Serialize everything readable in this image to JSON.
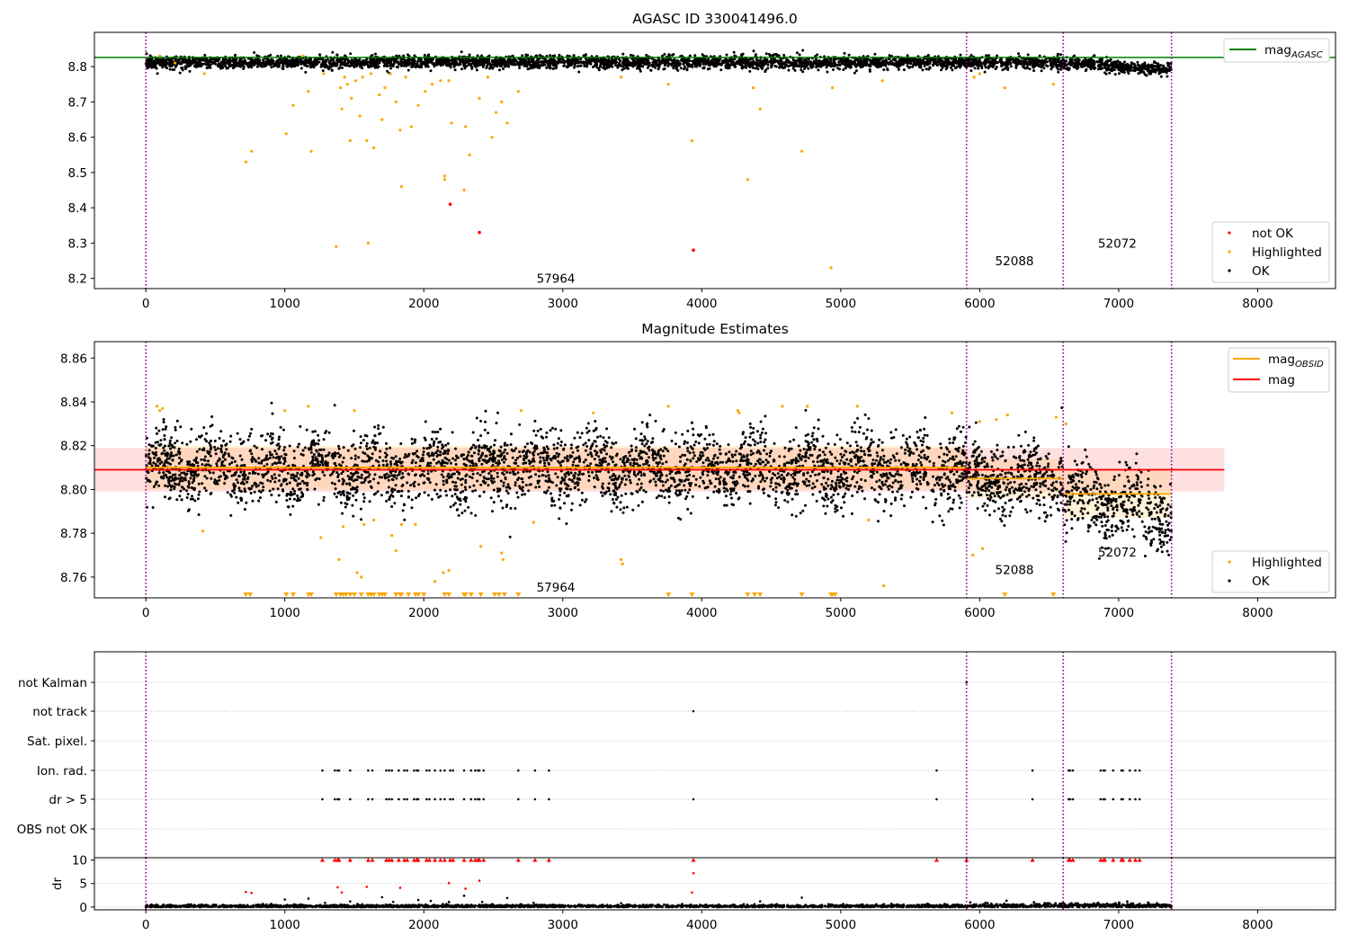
{
  "chart_data": [
    {
      "type": "scatter",
      "title": "AGASC ID 330041496.0",
      "xlim": [
        -370,
        8560
      ],
      "ylim": [
        8.171,
        8.897
      ],
      "xticks": [
        0,
        1000,
        2000,
        3000,
        4000,
        5000,
        6000,
        7000,
        8000
      ],
      "yticks": [
        8.2,
        8.3,
        8.4,
        8.5,
        8.6,
        8.7,
        8.8
      ],
      "vlines": [
        0,
        5905,
        6600,
        7380
      ],
      "hline": {
        "name": "mag_AGASC",
        "y": 8.826,
        "color": "#008000"
      },
      "obsid_labels": [
        {
          "text": "57964",
          "x": 2950,
          "y": 8.2
        },
        {
          "text": "52088",
          "x": 6250,
          "y": 8.25
        },
        {
          "text": "52072",
          "x": 6990,
          "y": 8.3
        }
      ],
      "legend_top": {
        "position": "top-right",
        "entries": [
          {
            "label": "mag",
            "sub": "AGASC",
            "color": "#008000"
          }
        ]
      },
      "legend_bottom": {
        "position": "bottom-right",
        "entries": [
          {
            "label": "not OK",
            "color": "#ff0000"
          },
          {
            "label": "Highlighted",
            "color": "#ffa500"
          },
          {
            "label": "OK",
            "color": "#000000"
          }
        ]
      },
      "series": [
        {
          "name": "OK",
          "color": "#000000",
          "band": {
            "x0": 0,
            "x1": 7380,
            "center": 8.812,
            "spread": 0.009
          }
        },
        {
          "name": "Highlighted",
          "color": "#ffa500",
          "points": [
            [
              100,
              8.83
            ],
            [
              210,
              8.81
            ],
            [
              420,
              8.78
            ],
            [
              720,
              8.53
            ],
            [
              760,
              8.56
            ],
            [
              1010,
              8.61
            ],
            [
              1060,
              8.69
            ],
            [
              1130,
              8.83
            ],
            [
              1170,
              8.73
            ],
            [
              1190,
              8.56
            ],
            [
              1280,
              8.78
            ],
            [
              1370,
              8.29
            ],
            [
              1400,
              8.74
            ],
            [
              1410,
              8.68
            ],
            [
              1430,
              8.77
            ],
            [
              1450,
              8.75
            ],
            [
              1470,
              8.59
            ],
            [
              1480,
              8.71
            ],
            [
              1510,
              8.76
            ],
            [
              1540,
              8.66
            ],
            [
              1560,
              8.77
            ],
            [
              1590,
              8.59
            ],
            [
              1600,
              8.3
            ],
            [
              1620,
              8.78
            ],
            [
              1640,
              8.57
            ],
            [
              1680,
              8.72
            ],
            [
              1700,
              8.65
            ],
            [
              1720,
              8.74
            ],
            [
              1760,
              8.78
            ],
            [
              1800,
              8.7
            ],
            [
              1830,
              8.62
            ],
            [
              1840,
              8.46
            ],
            [
              1870,
              8.77
            ],
            [
              1910,
              8.63
            ],
            [
              1960,
              8.69
            ],
            [
              2010,
              8.73
            ],
            [
              2060,
              8.75
            ],
            [
              2120,
              8.76
            ],
            [
              2150,
              8.49
            ],
            [
              2150,
              8.48
            ],
            [
              2180,
              8.76
            ],
            [
              2200,
              8.64
            ],
            [
              2290,
              8.45
            ],
            [
              2300,
              8.63
            ],
            [
              2330,
              8.55
            ],
            [
              2400,
              8.71
            ],
            [
              2460,
              8.77
            ],
            [
              2490,
              8.6
            ],
            [
              2520,
              8.67
            ],
            [
              2560,
              8.7
            ],
            [
              2600,
              8.64
            ],
            [
              2680,
              8.73
            ],
            [
              3420,
              8.77
            ],
            [
              3760,
              8.75
            ],
            [
              3930,
              8.59
            ],
            [
              4330,
              8.48
            ],
            [
              4370,
              8.74
            ],
            [
              4420,
              8.68
            ],
            [
              4720,
              8.56
            ],
            [
              4930,
              8.23
            ],
            [
              4940,
              8.74
            ],
            [
              5300,
              8.76
            ],
            [
              5960,
              8.77
            ],
            [
              6000,
              8.78
            ],
            [
              6180,
              8.74
            ],
            [
              6530,
              8.75
            ]
          ]
        },
        {
          "name": "not OK",
          "color": "#ff0000",
          "points": [
            [
              2190,
              8.41
            ],
            [
              2400,
              8.33
            ],
            [
              3940,
              8.28
            ]
          ]
        }
      ]
    },
    {
      "type": "scatter",
      "title": "Magnitude Estimates",
      "xlim": [
        -370,
        8560
      ],
      "ylim": [
        8.7505,
        8.8675
      ],
      "xticks": [
        0,
        1000,
        2000,
        3000,
        4000,
        5000,
        6000,
        7000,
        8000
      ],
      "yticks": [
        8.76,
        8.78,
        8.8,
        8.82,
        8.84,
        8.86
      ],
      "vlines": [
        0,
        5905,
        6600,
        7380
      ],
      "obsid_labels": [
        {
          "text": "57964",
          "x": 2950,
          "y": 8.7555
        },
        {
          "text": "52088",
          "x": 6250,
          "y": 8.7635
        },
        {
          "text": "52072",
          "x": 6990,
          "y": 8.7715
        }
      ],
      "mag": {
        "value": 8.809,
        "band": [
          8.799,
          8.819
        ],
        "x": [
          -370,
          7760
        ],
        "color": "#ff0000"
      },
      "mag_obsid": [
        {
          "x": [
            0,
            5905
          ],
          "value": 8.81,
          "band": [
            8.8,
            8.82
          ]
        },
        {
          "x": [
            5905,
            6600
          ],
          "value": 8.805,
          "band": [
            8.796,
            8.814
          ]
        },
        {
          "x": [
            6600,
            7380
          ],
          "value": 8.798,
          "band": [
            8.787,
            8.809
          ]
        }
      ],
      "legend_top": {
        "position": "top-right",
        "entries": [
          {
            "label": "mag",
            "sub": "OBSID",
            "color": "#ffa500"
          },
          {
            "label": "mag",
            "sub": "",
            "color": "#ff0000"
          }
        ]
      },
      "legend_bottom": {
        "position": "bottom-right",
        "entries": [
          {
            "label": "Highlighted",
            "color": "#ffa500"
          },
          {
            "label": "OK",
            "color": "#000000"
          }
        ]
      },
      "series": [
        {
          "name": "OK",
          "color": "#000000",
          "band": {
            "x0": 0,
            "x1": 7380,
            "center": 8.8095,
            "spread": 0.008
          }
        },
        {
          "name": "Highlighted",
          "color": "#ffa500",
          "points": [
            [
              80,
              8.838
            ],
            [
              100,
              8.836
            ],
            [
              120,
              8.837
            ],
            [
              410,
              8.781
            ],
            [
              1000,
              8.836
            ],
            [
              1170,
              8.838
            ],
            [
              1260,
              8.778
            ],
            [
              1390,
              8.768
            ],
            [
              1420,
              8.783
            ],
            [
              1500,
              8.836
            ],
            [
              1520,
              8.762
            ],
            [
              1550,
              8.76
            ],
            [
              1570,
              8.784
            ],
            [
              1640,
              8.786
            ],
            [
              1770,
              8.779
            ],
            [
              1800,
              8.772
            ],
            [
              1840,
              8.784
            ],
            [
              1940,
              8.784
            ],
            [
              2080,
              8.758
            ],
            [
              2140,
              8.762
            ],
            [
              2180,
              8.763
            ],
            [
              2410,
              8.774
            ],
            [
              2560,
              8.771
            ],
            [
              2570,
              8.768
            ],
            [
              2700,
              8.836
            ],
            [
              2790,
              8.785
            ],
            [
              3220,
              8.835
            ],
            [
              3420,
              8.768
            ],
            [
              3430,
              8.766
            ],
            [
              3760,
              8.838
            ],
            [
              4260,
              8.836
            ],
            [
              4270,
              8.835
            ],
            [
              4580,
              8.838
            ],
            [
              4760,
              8.838
            ],
            [
              5120,
              8.838
            ],
            [
              5200,
              8.786
            ],
            [
              5310,
              8.756
            ],
            [
              5800,
              8.835
            ],
            [
              5950,
              8.77
            ],
            [
              6000,
              8.831
            ],
            [
              6020,
              8.773
            ],
            [
              6120,
              8.832
            ],
            [
              6200,
              8.834
            ],
            [
              6550,
              8.833
            ],
            [
              6620,
              8.83
            ]
          ]
        },
        {
          "name": "Highlighted (below axis)",
          "color": "#ffa500",
          "markers": [
            720,
            750,
            1010,
            1060,
            1170,
            1190,
            1370,
            1400,
            1420,
            1440,
            1470,
            1500,
            1550,
            1600,
            1620,
            1640,
            1680,
            1700,
            1720,
            1800,
            1830,
            1840,
            1890,
            1940,
            1960,
            2000,
            2150,
            2180,
            2290,
            2300,
            2340,
            2410,
            2510,
            2540,
            2580,
            2680,
            3760,
            3930,
            4330,
            4380,
            4420,
            4720,
            4930,
            4940,
            4960,
            6180,
            6530
          ]
        }
      ]
    },
    {
      "type": "scatter",
      "title": "",
      "xlim": [
        -370,
        8560
      ],
      "xticks": [
        0,
        1000,
        2000,
        3000,
        4000,
        5000,
        6000,
        7000,
        8000
      ],
      "vlines": [
        0,
        5905,
        6600,
        7380
      ],
      "flag_rows": [
        "not Kalman",
        "not track",
        "Sat. pixel.",
        "Ion. rad.",
        "dr > 5",
        "OBS not OK"
      ],
      "flag_points": {
        "not Kalman": [
          5905
        ],
        "not track": [
          3940
        ],
        "Sat. pixel.": [],
        "Ion. rad.": [
          1270,
          1360,
          1380,
          1390,
          1470,
          1600,
          1630,
          1730,
          1750,
          1770,
          1820,
          1860,
          1880,
          1930,
          1950,
          1960,
          2020,
          2040,
          2080,
          2120,
          2150,
          2190,
          2210,
          2290,
          2340,
          2370,
          2390,
          2400,
          2430,
          2680,
          2800,
          2900,
          5690,
          6380,
          6640,
          6650,
          6670,
          6870,
          6890,
          6900,
          6960,
          7020,
          7030,
          7080,
          7120,
          7150
        ],
        "dr > 5": [
          1270,
          1360,
          1380,
          1390,
          1470,
          1600,
          1630,
          1730,
          1750,
          1770,
          1820,
          1860,
          1880,
          1930,
          1950,
          1960,
          2020,
          2040,
          2080,
          2120,
          2150,
          2190,
          2210,
          2290,
          2340,
          2370,
          2390,
          2400,
          2430,
          2680,
          2800,
          2900,
          3940,
          5690,
          6380,
          6640,
          6650,
          6670,
          6870,
          6890,
          6900,
          6960,
          7020,
          7030,
          7080,
          7120,
          7150
        ]
      },
      "dr_ylabel": "dr",
      "dr_ylim": [
        -0.6,
        10.5
      ],
      "dr_yticks": [
        0,
        5,
        10
      ],
      "dr_capped": [
        1270,
        1360,
        1380,
        1390,
        1470,
        1600,
        1630,
        1730,
        1750,
        1770,
        1820,
        1860,
        1880,
        1930,
        1950,
        1960,
        2020,
        2040,
        2080,
        2120,
        2150,
        2190,
        2210,
        2290,
        2340,
        2370,
        2390,
        2400,
        2430,
        2680,
        2800,
        2900,
        3940,
        5690,
        5905,
        6380,
        6640,
        6650,
        6670,
        6870,
        6890,
        6900,
        6960,
        7020,
        7030,
        7080,
        7120,
        7150
      ],
      "dr_red": [
        [
          720,
          3.2
        ],
        [
          760,
          3.0
        ],
        [
          1380,
          4.2
        ],
        [
          1410,
          3.1
        ],
        [
          1590,
          4.3
        ],
        [
          1830,
          4.1
        ],
        [
          2180,
          5.1
        ],
        [
          2300,
          3.9
        ],
        [
          2400,
          5.6
        ],
        [
          3930,
          3.1
        ],
        [
          3940,
          7.2
        ]
      ],
      "dr_black": [
        [
          1000,
          1.6
        ],
        [
          1170,
          1.8
        ],
        [
          1290,
          0.9
        ],
        [
          1470,
          1.2
        ],
        [
          1700,
          2.1
        ],
        [
          1780,
          1.1
        ],
        [
          1960,
          1.5
        ],
        [
          2050,
          1.3
        ],
        [
          2290,
          2.4
        ],
        [
          2420,
          1.1
        ],
        [
          2600,
          1.9
        ],
        [
          2790,
          0.9
        ],
        [
          3420,
          0.8
        ],
        [
          4420,
          1.2
        ],
        [
          4720,
          2.0
        ]
      ]
    }
  ]
}
